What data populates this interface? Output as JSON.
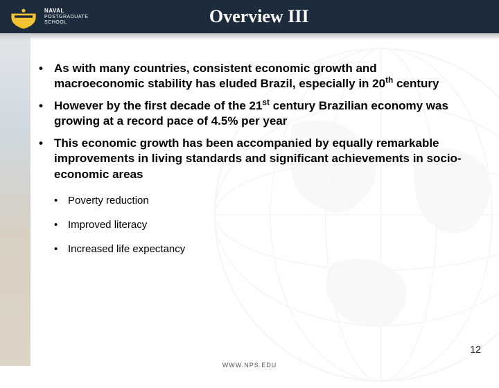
{
  "header": {
    "logo_lines": [
      "NAVAL",
      "POSTGRADUATE",
      "SCHOOL"
    ],
    "title": "Overview III",
    "bar_color": "#1d2c3d",
    "title_color": "#ffffff",
    "title_fontsize": 26
  },
  "bullets": {
    "main": [
      "As with many countries, consistent economic growth and macroeconomic stability has eluded Brazil, especially in 20<sup>th</sup> century",
      "However by the first decade of the 21<sup>st</sup> century Brazilian economy was growing at a record pace of 4.5% per year",
      "This economic growth has been accompanied by equally remarkable improvements in living standards and significant achievements in socio-economic areas"
    ],
    "sub": [
      "Poverty reduction",
      "Improved literacy",
      "Increased life expectancy"
    ],
    "main_fontsize": 17,
    "sub_fontsize": 15,
    "text_color": "#000000"
  },
  "footer": {
    "url": "WWW.NPS.EDU",
    "page_number": "12"
  },
  "background": {
    "globe_color": "#cccccc",
    "left_strip_enabled": true
  }
}
